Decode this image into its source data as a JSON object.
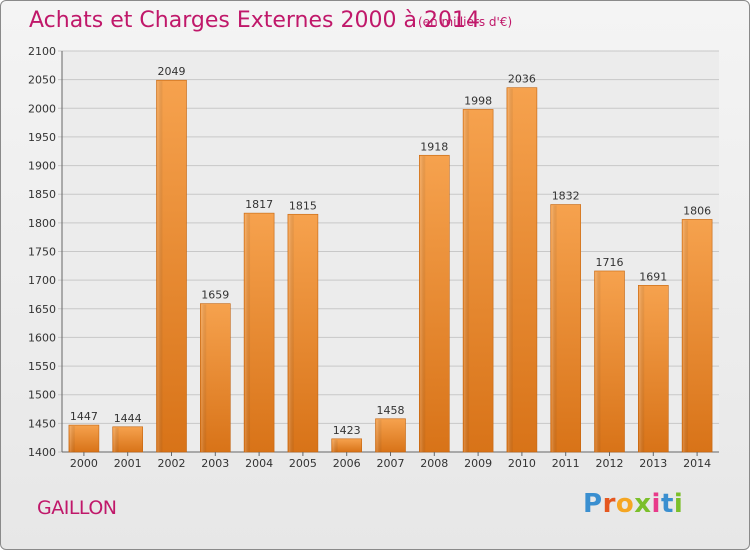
{
  "header": {
    "title": "Achats et Charges Externes 2000 à 2014",
    "subtitle": "(en milliers d'€)"
  },
  "footer": {
    "city": "GAILLON",
    "logo_letters": [
      "P",
      "r",
      "o",
      "x",
      "i",
      "t",
      "i"
    ],
    "logo_colors": [
      "#3a8fd0",
      "#e5571f",
      "#f5a623",
      "#7bbf2a",
      "#e83a8a",
      "#3a8fd0",
      "#7bbf2a"
    ]
  },
  "colors": {
    "accent": "#c0186a",
    "bar_light": "#f6a24e",
    "bar_dark": "#d87318",
    "grid": "#c8c8c8"
  },
  "chart_data": {
    "type": "bar",
    "title": "Achats et Charges Externes 2000 à 2014",
    "subtitle": "(en milliers d'€)",
    "categories": [
      "2000",
      "2001",
      "2002",
      "2003",
      "2004",
      "2005",
      "2006",
      "2007",
      "2008",
      "2009",
      "2010",
      "2011",
      "2012",
      "2013",
      "2014"
    ],
    "values": [
      1447,
      1444,
      2049,
      1659,
      1817,
      1815,
      1423,
      1458,
      1918,
      1998,
      2036,
      1832,
      1716,
      1691,
      1806
    ],
    "ylim": [
      1400,
      2100
    ],
    "yticks": [
      1400,
      1450,
      1500,
      1550,
      1600,
      1650,
      1700,
      1750,
      1800,
      1850,
      1900,
      1950,
      2000,
      2050,
      2100
    ],
    "grid": true,
    "xlabel": "",
    "ylabel": ""
  }
}
